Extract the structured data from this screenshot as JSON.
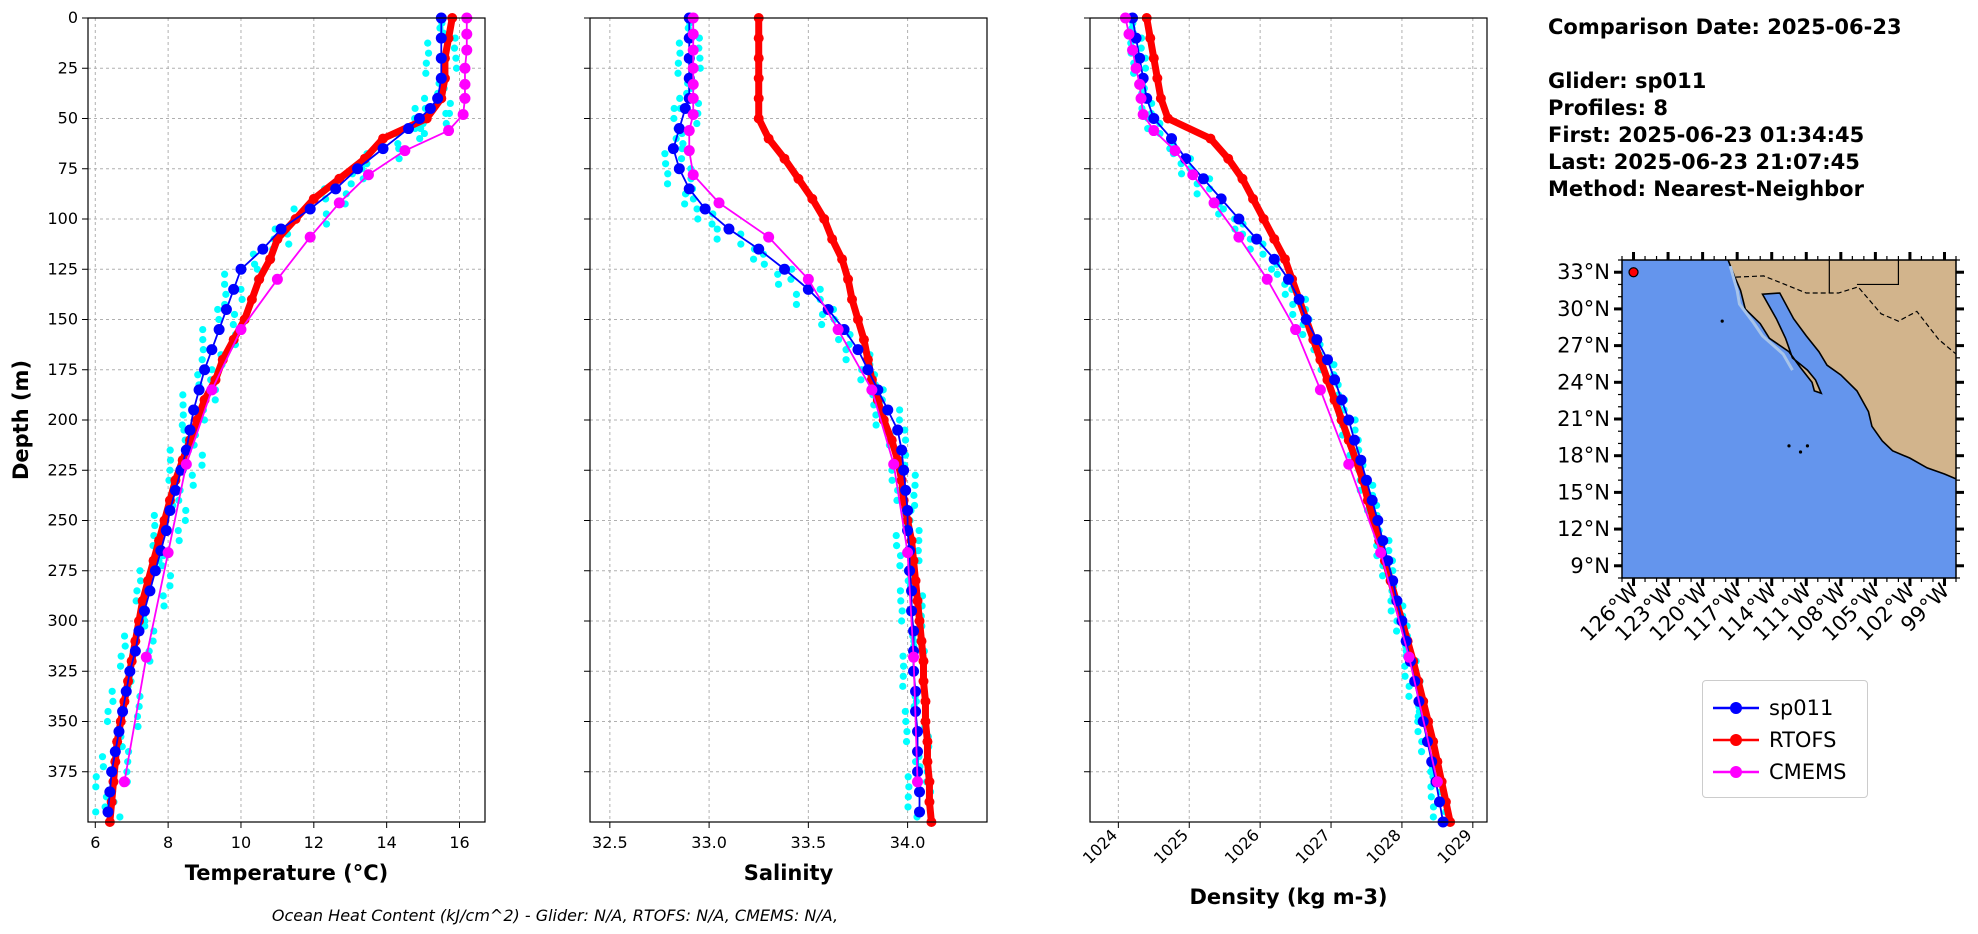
{
  "info": {
    "comparison": "Comparison Date: 2025-06-23",
    "glider": "Glider: sp011",
    "profiles": "Profiles: 8",
    "first": "First: 2025-06-23 01:34:45",
    "last": "Last: 2025-06-23 21:07:45",
    "method": "Method: Nearest-Neighbor"
  },
  "footer": "Ocean Heat Content (kJ/cm^2) - Glider: N/A,  RTOFS: N/A,  CMEMS: N/A,",
  "legend": [
    {
      "name": "sp011",
      "color": "#0000ff"
    },
    {
      "name": "RTOFS",
      "color": "#ff0000"
    },
    {
      "name": "CMEMS",
      "color": "#ff00ff"
    }
  ],
  "colors": {
    "glider_raw": "#00ffff",
    "ocean": "#6495ed",
    "land": "#d2b48c",
    "shelf": "#a7c4ea"
  },
  "map": {
    "lat_ticks": [
      "33°N",
      "30°N",
      "27°N",
      "24°N",
      "21°N",
      "18°N",
      "15°N",
      "12°N",
      "9°N"
    ],
    "lon_ticks": [
      "126°W",
      "123°W",
      "120°W",
      "117°W",
      "114°W",
      "111°W",
      "108°W",
      "105°W",
      "102°W",
      "99°W"
    ],
    "lat_range": [
      8,
      34
    ],
    "lon_range": [
      -127,
      -98
    ],
    "glider_location": {
      "lon": -126.0,
      "lat": 33.0
    }
  },
  "chart_data": [
    {
      "type": "line",
      "xlabel": "Temperature (°C)",
      "ylabel": "Depth (m)",
      "xlim": [
        5.8,
        16.7
      ],
      "ylim": [
        400,
        0
      ],
      "xticks": [
        "6",
        "8",
        "10",
        "12",
        "14",
        "16"
      ],
      "yticks": [
        "0",
        "25",
        "50",
        "75",
        "100",
        "125",
        "150",
        "175",
        "200",
        "225",
        "250",
        "275",
        "300",
        "325",
        "350",
        "375"
      ],
      "grid": true,
      "series": [
        {
          "name": "sp011",
          "depth": [
            0,
            10,
            20,
            30,
            40,
            45,
            50,
            55,
            65,
            75,
            85,
            95,
            105,
            115,
            125,
            135,
            145,
            155,
            165,
            175,
            185,
            195,
            205,
            215,
            225,
            235,
            245,
            255,
            265,
            275,
            285,
            295,
            305,
            315,
            325,
            335,
            345,
            355,
            365,
            375,
            385,
            395
          ],
          "values": [
            15.5,
            15.5,
            15.5,
            15.5,
            15.4,
            15.2,
            14.9,
            14.6,
            13.9,
            13.2,
            12.6,
            11.9,
            11.1,
            10.6,
            10.0,
            9.8,
            9.6,
            9.4,
            9.2,
            9.0,
            8.85,
            8.7,
            8.6,
            8.5,
            8.35,
            8.2,
            8.05,
            7.95,
            7.8,
            7.65,
            7.5,
            7.35,
            7.2,
            7.1,
            6.95,
            6.85,
            6.75,
            6.65,
            6.55,
            6.45,
            6.4,
            6.35
          ]
        },
        {
          "name": "RTOFS",
          "depth": [
            0,
            10,
            20,
            30,
            40,
            50,
            60,
            70,
            80,
            90,
            100,
            110,
            120,
            130,
            140,
            150,
            160,
            170,
            180,
            190,
            200,
            210,
            220,
            230,
            240,
            250,
            260,
            270,
            280,
            290,
            300,
            310,
            320,
            330,
            340,
            350,
            360,
            370,
            380,
            390,
            400
          ],
          "values": [
            15.8,
            15.7,
            15.6,
            15.6,
            15.5,
            15.1,
            13.9,
            13.4,
            12.7,
            12.0,
            11.5,
            11.0,
            10.8,
            10.5,
            10.3,
            10.1,
            9.8,
            9.5,
            9.3,
            9.0,
            8.8,
            8.6,
            8.4,
            8.2,
            8.05,
            7.9,
            7.75,
            7.6,
            7.45,
            7.3,
            7.2,
            7.1,
            7.0,
            6.9,
            6.8,
            6.7,
            6.6,
            6.55,
            6.5,
            6.45,
            6.4
          ]
        },
        {
          "name": "CMEMS",
          "depth": [
            0,
            8,
            16,
            25,
            33,
            40,
            48,
            56,
            66,
            78,
            92,
            109,
            130,
            155,
            185,
            222,
            266,
            318,
            380
          ],
          "values": [
            16.2,
            16.2,
            16.2,
            16.15,
            16.15,
            16.15,
            16.1,
            15.7,
            14.5,
            13.5,
            12.7,
            11.9,
            11.0,
            10.0,
            9.2,
            8.5,
            8.0,
            7.4,
            6.8
          ]
        }
      ]
    },
    {
      "type": "line",
      "xlabel": "Salinity",
      "ylabel": "",
      "xlim": [
        32.4,
        34.4
      ],
      "ylim": [
        400,
        0
      ],
      "xticks": [
        "32.5",
        "33.0",
        "33.5",
        "34.0"
      ],
      "grid": true,
      "series": [
        {
          "name": "sp011",
          "depth": [
            0,
            10,
            20,
            30,
            40,
            45,
            55,
            65,
            75,
            85,
            95,
            105,
            115,
            125,
            135,
            145,
            155,
            165,
            175,
            185,
            195,
            205,
            215,
            225,
            235,
            245,
            255,
            265,
            275,
            285,
            295,
            305,
            315,
            325,
            335,
            345,
            355,
            365,
            375,
            385,
            395
          ],
          "values": [
            32.9,
            32.9,
            32.9,
            32.9,
            32.9,
            32.88,
            32.85,
            32.82,
            32.85,
            32.9,
            32.98,
            33.1,
            33.25,
            33.38,
            33.5,
            33.6,
            33.68,
            33.75,
            33.8,
            33.85,
            33.9,
            33.95,
            33.97,
            33.98,
            33.99,
            34.0,
            34.0,
            34.01,
            34.01,
            34.02,
            34.02,
            34.03,
            34.03,
            34.03,
            34.04,
            34.04,
            34.05,
            34.05,
            34.05,
            34.06,
            34.06
          ]
        },
        {
          "name": "RTOFS",
          "depth": [
            0,
            10,
            20,
            30,
            40,
            50,
            60,
            70,
            80,
            90,
            100,
            110,
            120,
            130,
            140,
            150,
            160,
            170,
            180,
            190,
            200,
            210,
            220,
            230,
            240,
            250,
            260,
            270,
            280,
            290,
            300,
            310,
            320,
            330,
            340,
            350,
            360,
            370,
            380,
            390,
            400
          ],
          "values": [
            33.25,
            33.25,
            33.25,
            33.25,
            33.25,
            33.25,
            33.3,
            33.38,
            33.45,
            33.52,
            33.58,
            33.62,
            33.67,
            33.7,
            33.72,
            33.75,
            33.78,
            33.8,
            33.82,
            33.85,
            33.88,
            33.92,
            33.95,
            33.97,
            33.98,
            34.0,
            34.02,
            34.03,
            34.04,
            34.05,
            34.06,
            34.07,
            34.08,
            34.08,
            34.09,
            34.09,
            34.1,
            34.1,
            34.11,
            34.11,
            34.12
          ]
        },
        {
          "name": "CMEMS",
          "depth": [
            0,
            8,
            16,
            25,
            33,
            40,
            48,
            56,
            66,
            78,
            92,
            109,
            130,
            155,
            185,
            222,
            266,
            318,
            380
          ],
          "values": [
            32.92,
            32.92,
            32.92,
            32.92,
            32.92,
            32.92,
            32.92,
            32.9,
            32.9,
            32.92,
            33.05,
            33.3,
            33.5,
            33.65,
            33.82,
            33.93,
            34.0,
            34.03,
            34.05
          ]
        }
      ]
    },
    {
      "type": "line",
      "xlabel": "Density (kg m-3)",
      "ylabel": "",
      "xlim": [
        1023.6,
        1029.2
      ],
      "ylim": [
        400,
        0
      ],
      "xticks": [
        "1024",
        "1025",
        "1026",
        "1027",
        "1028",
        "1029"
      ],
      "grid": true,
      "series": [
        {
          "name": "sp011",
          "depth": [
            0,
            10,
            20,
            30,
            40,
            50,
            60,
            70,
            80,
            90,
            100,
            110,
            120,
            130,
            140,
            150,
            160,
            170,
            180,
            190,
            200,
            210,
            220,
            230,
            240,
            250,
            260,
            270,
            280,
            290,
            300,
            310,
            320,
            330,
            340,
            350,
            360,
            370,
            380,
            390,
            400
          ],
          "values": [
            1024.2,
            1024.25,
            1024.3,
            1024.35,
            1024.4,
            1024.5,
            1024.75,
            1024.95,
            1025.2,
            1025.45,
            1025.7,
            1025.95,
            1026.2,
            1026.4,
            1026.55,
            1026.65,
            1026.8,
            1026.95,
            1027.05,
            1027.15,
            1027.25,
            1027.33,
            1027.42,
            1027.5,
            1027.58,
            1027.66,
            1027.73,
            1027.8,
            1027.87,
            1027.93,
            1028.0,
            1028.06,
            1028.12,
            1028.18,
            1028.24,
            1028.3,
            1028.36,
            1028.42,
            1028.48,
            1028.53,
            1028.58
          ]
        },
        {
          "name": "RTOFS",
          "depth": [
            0,
            10,
            20,
            30,
            40,
            50,
            60,
            70,
            80,
            90,
            100,
            110,
            120,
            130,
            140,
            150,
            160,
            170,
            180,
            190,
            200,
            210,
            220,
            230,
            240,
            250,
            260,
            270,
            280,
            290,
            300,
            310,
            320,
            330,
            340,
            350,
            360,
            370,
            380,
            390,
            400
          ],
          "values": [
            1024.4,
            1024.45,
            1024.5,
            1024.55,
            1024.6,
            1024.7,
            1025.3,
            1025.55,
            1025.75,
            1025.9,
            1026.05,
            1026.2,
            1026.35,
            1026.45,
            1026.55,
            1026.65,
            1026.75,
            1026.85,
            1026.95,
            1027.05,
            1027.15,
            1027.25,
            1027.35,
            1027.45,
            1027.52,
            1027.6,
            1027.68,
            1027.76,
            1027.84,
            1027.92,
            1028.0,
            1028.08,
            1028.16,
            1028.23,
            1028.3,
            1028.37,
            1028.44,
            1028.5,
            1028.56,
            1028.62,
            1028.68
          ]
        },
        {
          "name": "CMEMS",
          "depth": [
            0,
            8,
            16,
            25,
            33,
            40,
            48,
            56,
            66,
            78,
            92,
            109,
            130,
            155,
            185,
            222,
            266,
            318,
            380
          ],
          "values": [
            1024.1,
            1024.15,
            1024.2,
            1024.25,
            1024.3,
            1024.32,
            1024.35,
            1024.5,
            1024.8,
            1025.05,
            1025.35,
            1025.7,
            1026.1,
            1026.5,
            1026.85,
            1027.25,
            1027.7,
            1028.1,
            1028.5
          ]
        }
      ]
    }
  ]
}
